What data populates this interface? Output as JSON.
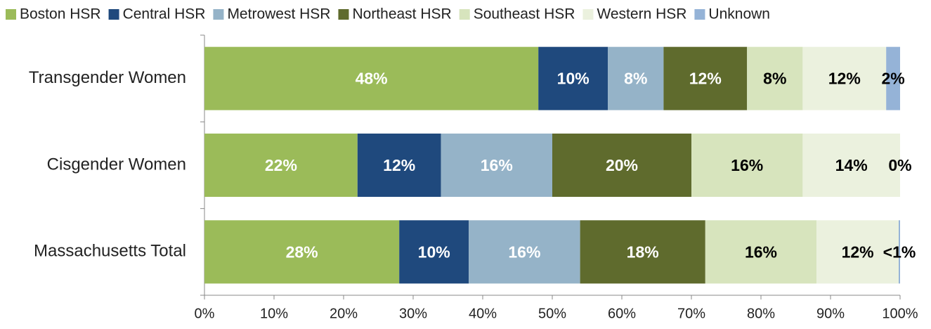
{
  "chart_data": {
    "type": "stacked-bar-horizontal",
    "categories": [
      "Transgender Women",
      "Cisgender Women",
      "Massachusetts Total"
    ],
    "series": [
      {
        "name": "Boston HSR",
        "color": "#9bbb59",
        "label_color": "#ffffff",
        "values": [
          48,
          22,
          28
        ],
        "value_labels": [
          "48%",
          "22%",
          "28%"
        ]
      },
      {
        "name": "Central HSR",
        "color": "#1f497d",
        "label_color": "#ffffff",
        "values": [
          10,
          12,
          10
        ],
        "value_labels": [
          "10%",
          "12%",
          "10%"
        ]
      },
      {
        "name": "Metrowest HSR",
        "color": "#95b3c8",
        "label_color": "#ffffff",
        "values": [
          8,
          16,
          16
        ],
        "value_labels": [
          "8%",
          "16%",
          "16%"
        ]
      },
      {
        "name": "Northeast HSR",
        "color": "#5f6b2d",
        "label_color": "#ffffff",
        "values": [
          12,
          20,
          18
        ],
        "value_labels": [
          "12%",
          "20%",
          "18%"
        ]
      },
      {
        "name": "Southeast HSR",
        "color": "#d7e4bd",
        "label_color": "#000000",
        "values": [
          8,
          16,
          16
        ],
        "value_labels": [
          "8%",
          "16%",
          "16%"
        ]
      },
      {
        "name": "Western HSR",
        "color": "#ebf1de",
        "label_color": "#000000",
        "values": [
          12,
          14,
          11.8
        ],
        "value_labels": [
          "12%",
          "14%",
          "12%"
        ]
      },
      {
        "name": "Unknown",
        "color": "#95b3d7",
        "label_color": "#000000",
        "values": [
          2,
          0,
          0.2
        ],
        "value_labels": [
          "2%",
          "0%",
          "<1%"
        ]
      }
    ],
    "xlim": [
      0,
      100
    ],
    "xticks": [
      {
        "value": 0,
        "label": "0%"
      },
      {
        "value": 10,
        "label": "10%"
      },
      {
        "value": 20,
        "label": "20%"
      },
      {
        "value": 30,
        "label": "30%"
      },
      {
        "value": 40,
        "label": "40%"
      },
      {
        "value": 50,
        "label": "50%"
      },
      {
        "value": 60,
        "label": "60%"
      },
      {
        "value": 70,
        "label": "70%"
      },
      {
        "value": 80,
        "label": "80%"
      },
      {
        "value": 90,
        "label": "90%"
      },
      {
        "value": 100,
        "label": "100%"
      }
    ],
    "legend": "top"
  }
}
